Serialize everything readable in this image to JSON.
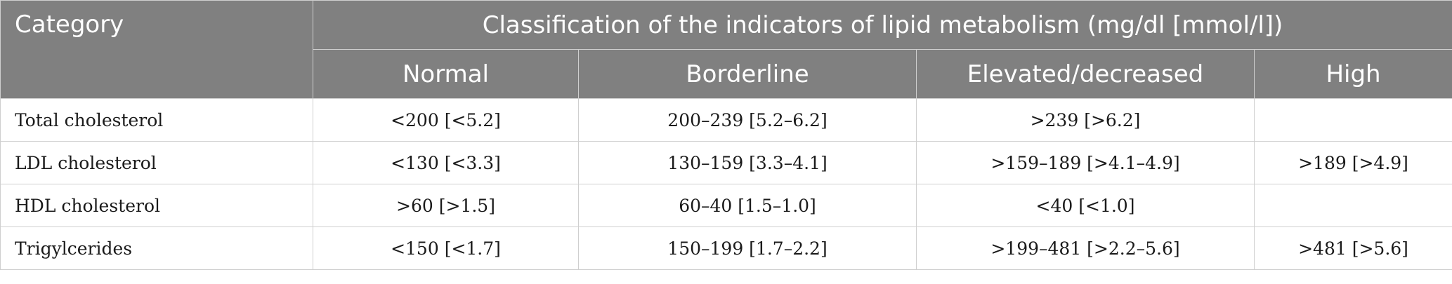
{
  "table": {
    "header": {
      "category_label": "Category",
      "group_label": "Classification of the indicators of lipid metabolism (mg/dl [mmol/l])",
      "columns": [
        "Normal",
        "Borderline",
        "Elevated/decreased",
        "High"
      ]
    },
    "rows": [
      {
        "category": "Total cholesterol",
        "cells": [
          "<200 [<5.2]",
          "200–239 [5.2–6.2]",
          ">239 [>6.2]",
          ""
        ]
      },
      {
        "category": "LDL cholesterol",
        "cells": [
          "<130 [<3.3]",
          "130–159 [3.3–4.1]",
          ">159–189 [>4.1–4.9]",
          ">189 [>4.9]"
        ]
      },
      {
        "category": "HDL cholesterol",
        "cells": [
          ">60 [>1.5]",
          "60–40 [1.5–1.0]",
          "<40 [<1.0]",
          ""
        ]
      },
      {
        "category": "Trigylcerides",
        "cells": [
          "<150 [<1.7]",
          "150–199 [1.7–2.2]",
          ">199–481 [>2.2–5.6]",
          ">481 [>5.6]"
        ]
      }
    ]
  },
  "colors": {
    "header_bg": "#808080",
    "header_text": "#ffffff",
    "grid": "#cfcfcf"
  }
}
